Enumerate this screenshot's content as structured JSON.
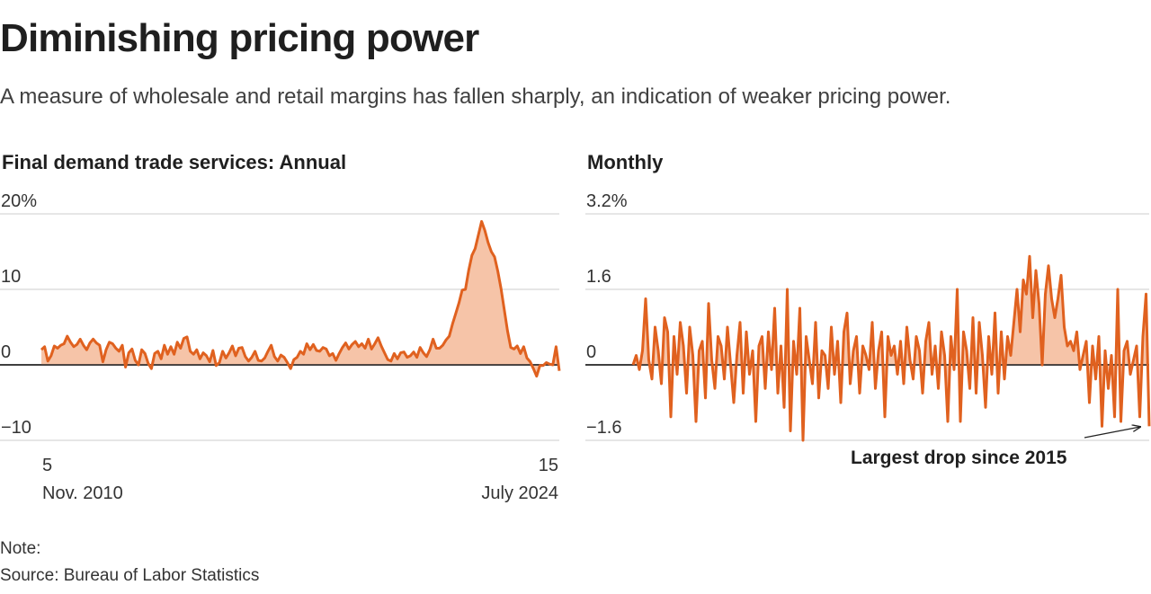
{
  "header": {
    "title": "Diminishing pricing power",
    "subtitle": "A measure of wholesale and retail margins has fallen sharply, an indication of weaker pricing power."
  },
  "footer": {
    "note": "Note:",
    "source": "Source: Bureau of Labor Statistics"
  },
  "colors": {
    "line": "#e0611f",
    "fill": "#f6c4a8",
    "grid": "#cccccc",
    "zero": "#222222",
    "text": "#333333"
  },
  "chart_data": [
    {
      "type": "area",
      "title": "Final demand trade services: Annual",
      "unit": "%",
      "ylim": [
        -10,
        20
      ],
      "yticks": [
        {
          "value": 20,
          "label": "20%"
        },
        {
          "value": 10,
          "label": "10"
        },
        {
          "value": 0,
          "label": "0"
        },
        {
          "value": -10,
          "label": "−10"
        }
      ],
      "grid": true,
      "x_start_label": [
        "5",
        "Nov. 2010"
      ],
      "x_end_label": [
        "15",
        "July 2024"
      ],
      "series": [
        {
          "values": [
            2.0,
            2.4,
            0.5,
            1.2,
            2.5,
            2.2,
            2.6,
            2.8,
            3.8,
            3.0,
            2.4,
            2.7,
            3.4,
            2.6,
            2.0,
            2.9,
            3.4,
            2.9,
            2.6,
            0.4,
            2.0,
            3.0,
            2.8,
            2.2,
            1.8,
            2.6,
            -0.3,
            1.6,
            2.1,
            0.6,
            0.0,
            2.0,
            1.5,
            0.2,
            -0.5,
            1.5,
            1.8,
            0.8,
            2.6,
            1.4,
            2.4,
            1.4,
            3.0,
            2.2,
            3.5,
            3.7,
            1.8,
            1.4,
            2.0,
            0.8,
            1.6,
            1.2,
            0.4,
            1.9,
            -0.1,
            0.3,
            1.8,
            0.9,
            1.6,
            2.5,
            1.2,
            2.2,
            2.3,
            1.1,
            0.5,
            1.0,
            1.8,
            0.6,
            0.5,
            0.9,
            1.8,
            2.6,
            1.1,
            0.5,
            1.3,
            1.0,
            0.3,
            -0.5,
            0.7,
            1.0,
            1.8,
            1.4,
            2.8,
            2.0,
            2.7,
            1.9,
            1.8,
            2.3,
            2.1,
            1.2,
            1.5,
            0.6,
            1.5,
            2.3,
            2.9,
            2.1,
            2.7,
            3.1,
            2.4,
            2.8,
            2.2,
            3.4,
            2.1,
            2.8,
            3.6,
            2.5,
            1.6,
            0.7,
            0.5,
            1.5,
            0.8,
            1.6,
            1.7,
            1.0,
            1.2,
            1.7,
            1.0,
            2.3,
            1.6,
            1.1,
            2.0,
            3.4,
            2.2,
            2.2,
            2.6,
            3.3,
            3.8,
            5.4,
            6.8,
            8.2,
            9.9,
            10.0,
            12.5,
            14.5,
            15.4,
            17.2,
            19.0,
            17.8,
            16.2,
            15.0,
            14.3,
            12.4,
            10.1,
            7.3,
            4.5,
            2.3,
            2.1,
            2.5,
            1.5,
            2.4,
            0.9,
            0.4,
            -0.5,
            -1.5,
            -0.1,
            -0.1,
            0.3,
            0.1,
            0.0,
            2.4,
            -0.8
          ]
        }
      ]
    },
    {
      "type": "area",
      "title": "Monthly",
      "unit": "%",
      "ylim": [
        -1.6,
        3.2
      ],
      "yticks": [
        {
          "value": 3.2,
          "label": "3.2%"
        },
        {
          "value": 1.6,
          "label": "1.6"
        },
        {
          "value": 0,
          "label": "0"
        },
        {
          "value": -1.6,
          "label": "−1.6"
        }
      ],
      "grid": true,
      "annotation": "Largest drop since 2015",
      "series": [
        {
          "values": [
            0.0,
            0.2,
            -0.1,
            0.3,
            1.4,
            0.1,
            -0.3,
            0.8,
            0.3,
            -0.4,
            1.0,
            0.7,
            -1.1,
            0.6,
            -0.2,
            0.9,
            0.4,
            -0.6,
            0.8,
            0.2,
            -1.2,
            0.3,
            0.5,
            -0.7,
            1.3,
            0.1,
            -0.5,
            0.6,
            0.4,
            -0.3,
            0.8,
            0.0,
            -0.8,
            0.2,
            0.9,
            -0.6,
            0.7,
            -0.2,
            0.3,
            -1.2,
            0.4,
            0.6,
            -0.5,
            0.7,
            -0.1,
            1.2,
            -0.6,
            0.4,
            -0.9,
            1.6,
            -1.4,
            0.5,
            -0.2,
            1.2,
            -1.6,
            0.6,
            0.1,
            -0.4,
            0.9,
            -0.7,
            0.3,
            0.2,
            -0.5,
            0.8,
            -0.2,
            0.5,
            -0.8,
            0.7,
            1.1,
            -0.4,
            0.3,
            0.6,
            -0.6,
            0.4,
            0.2,
            -0.1,
            0.9,
            -0.5,
            0.3,
            0.7,
            -1.1,
            0.6,
            0.2,
            0.4,
            -0.2,
            0.5,
            -0.4,
            0.8,
            0.1,
            -0.3,
            0.6,
            0.3,
            -0.6,
            0.5,
            0.9,
            -0.2,
            0.4,
            -0.5,
            0.7,
            0.2,
            -1.2,
            0.6,
            -0.1,
            1.6,
            -1.2,
            0.7,
            0.3,
            -0.5,
            1.0,
            -0.6,
            0.9,
            0.2,
            -0.9,
            0.6,
            -0.2,
            1.1,
            -0.6,
            0.7,
            -0.3,
            0.6,
            0.2,
            0.9,
            1.6,
            0.7,
            1.8,
            1.5,
            2.3,
            1.0,
            2.0,
            1.3,
            0.0,
            1.5,
            2.1,
            1.4,
            1.0,
            1.4,
            1.9,
            0.8,
            0.4,
            0.5,
            0.3,
            0.7,
            -0.1,
            0.2,
            0.5,
            -0.8,
            0.4,
            -0.3,
            0.6,
            -1.3,
            0.3,
            -0.5,
            0.2,
            -1.1,
            1.6,
            -1.2,
            0.3,
            0.5,
            -0.2,
            0.1,
            0.4,
            -1.1,
            0.6,
            1.5,
            -1.3
          ]
        }
      ]
    }
  ]
}
